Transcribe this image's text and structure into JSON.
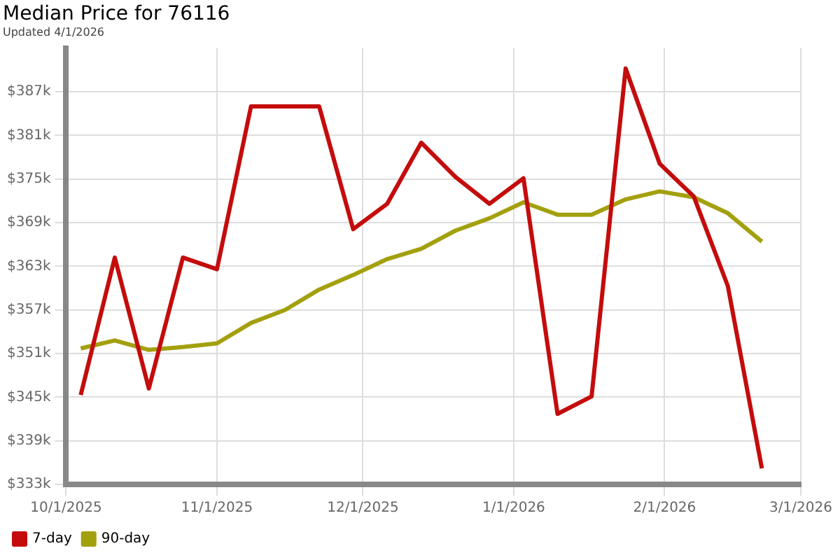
{
  "chart_data": {
    "type": "line",
    "title": "Median Price for 76116",
    "subtitle": "Updated 4/1/2026",
    "x": [
      "2025-10-04",
      "2025-10-11",
      "2025-10-18",
      "2025-10-25",
      "2025-11-01",
      "2025-11-08",
      "2025-11-15",
      "2025-11-22",
      "2025-11-29",
      "2025-12-06",
      "2025-12-13",
      "2025-12-20",
      "2025-12-27",
      "2026-01-03",
      "2026-01-10",
      "2026-01-17",
      "2026-01-24",
      "2026-01-31",
      "2026-02-07",
      "2026-02-14",
      "2026-02-21"
    ],
    "series": [
      {
        "name": "7-day",
        "color": "#c40c0c",
        "values": [
          345300,
          364200,
          346200,
          364200,
          362600,
          385000,
          385000,
          385000,
          368100,
          371600,
          380000,
          375300,
          371600,
          375100,
          342700,
          345100,
          390200,
          377100,
          372600,
          360300,
          335200
        ]
      },
      {
        "name": "90-day",
        "color": "#a3a00e",
        "values": [
          351700,
          352800,
          351500,
          351900,
          352400,
          355200,
          357000,
          359800,
          361800,
          364000,
          365400,
          367900,
          369600,
          371800,
          370100,
          370100,
          372200,
          373300,
          372500,
          370300,
          366400
        ]
      }
    ],
    "xlim": [
      "2025-10-01",
      "2026-03-01"
    ],
    "xticks": [
      {
        "value": "2025-10-01",
        "label": "10/1/2025"
      },
      {
        "value": "2025-11-01",
        "label": "11/1/2025"
      },
      {
        "value": "2025-12-01",
        "label": "12/1/2025"
      },
      {
        "value": "2026-01-01",
        "label": "1/1/2026"
      },
      {
        "value": "2026-02-01",
        "label": "2/1/2026"
      },
      {
        "value": "2026-03-01",
        "label": "3/1/2026"
      }
    ],
    "ylim": [
      333000,
      393000
    ],
    "yticks": [
      {
        "value": 333000,
        "label": "$333k"
      },
      {
        "value": 339000,
        "label": "$339k"
      },
      {
        "value": 345000,
        "label": "$345k"
      },
      {
        "value": 351000,
        "label": "$351k"
      },
      {
        "value": 357000,
        "label": "$357k"
      },
      {
        "value": 363000,
        "label": "$363k"
      },
      {
        "value": 369000,
        "label": "$369k"
      },
      {
        "value": 375000,
        "label": "$375k"
      },
      {
        "value": 381000,
        "label": "$381k"
      },
      {
        "value": 387000,
        "label": "$387k"
      }
    ],
    "grid": true,
    "legend": "bottom left",
    "marker": "none",
    "line_style": "solid"
  }
}
